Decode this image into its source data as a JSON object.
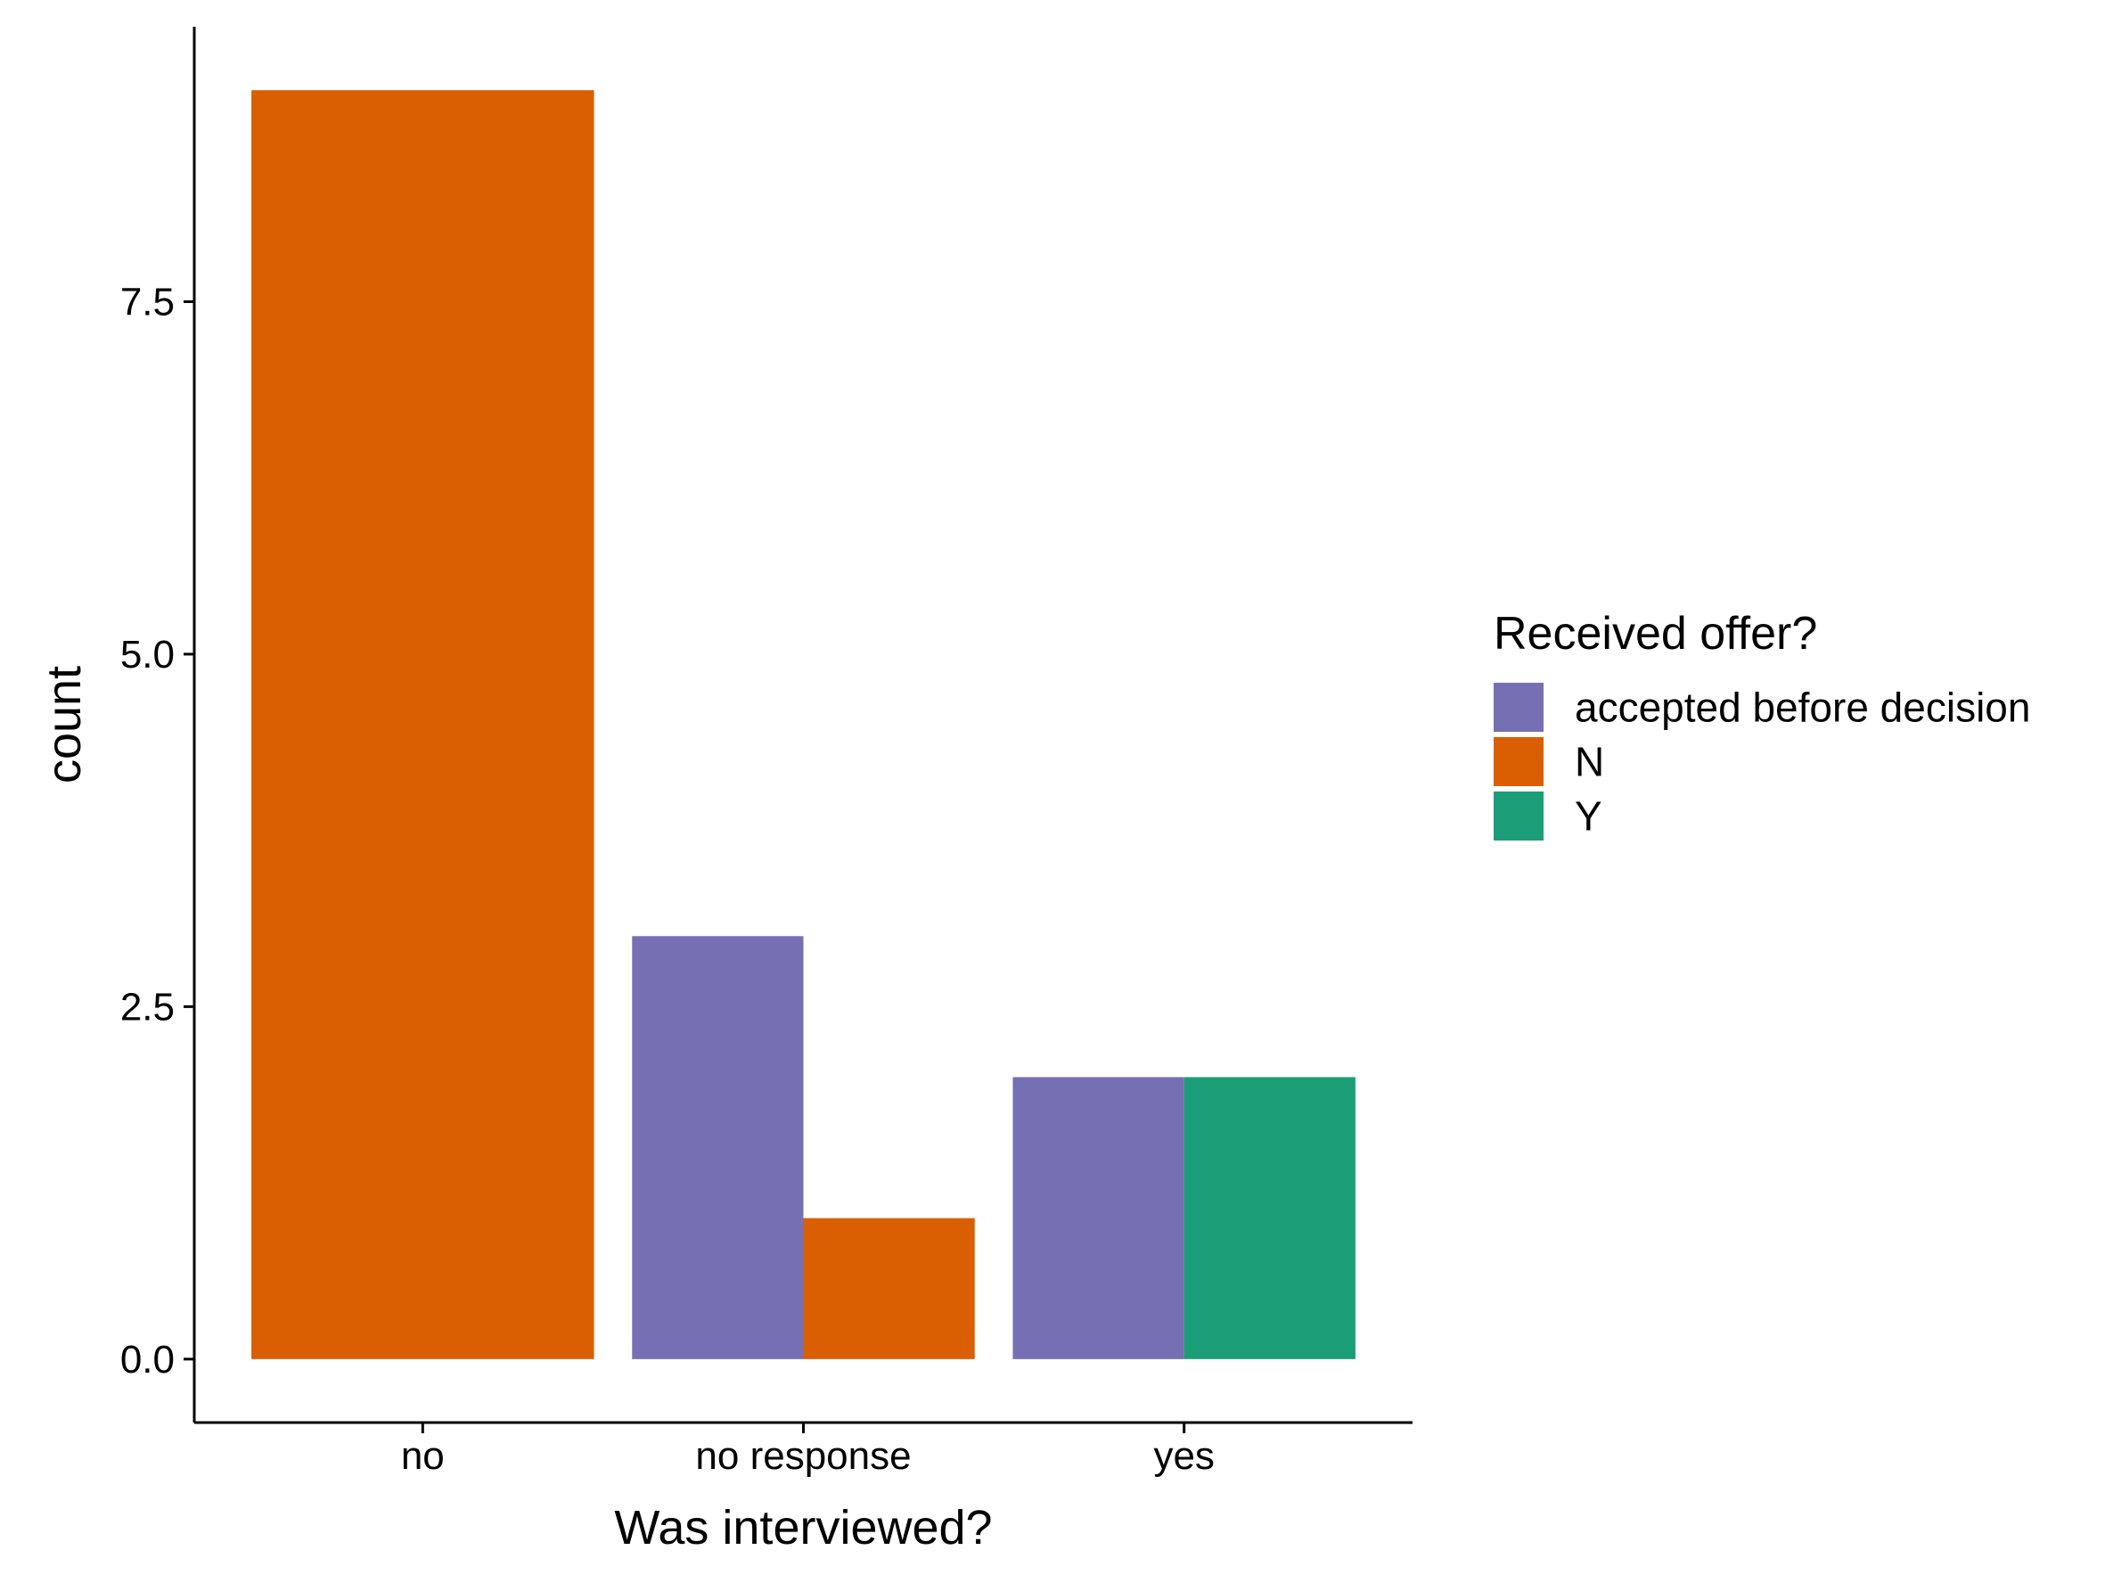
{
  "chart_data": {
    "type": "bar",
    "bar_mode": "dodge",
    "title": "",
    "xlabel": "Was interviewed?",
    "ylabel": "count",
    "ylim": [
      -0.45,
      9.45
    ],
    "y_ticks": [
      0.0,
      2.5,
      5.0,
      7.5
    ],
    "y_tick_labels": [
      "0.0",
      "2.5",
      "5.0",
      "7.5"
    ],
    "categories": [
      "no",
      "no response",
      "yes"
    ],
    "groups": [
      {
        "category": "no",
        "bars": [
          {
            "series": "N",
            "value": 9
          }
        ]
      },
      {
        "category": "no response",
        "bars": [
          {
            "series": "accepted before decision",
            "value": 3
          },
          {
            "series": "N",
            "value": 1
          }
        ]
      },
      {
        "category": "yes",
        "bars": [
          {
            "series": "accepted before decision",
            "value": 2
          },
          {
            "series": "Y",
            "value": 2
          }
        ]
      }
    ],
    "series": [
      {
        "name": "accepted before decision",
        "color": "#7570B3"
      },
      {
        "name": "N",
        "color": "#D95F02"
      },
      {
        "name": "Y",
        "color": "#1B9E77"
      }
    ],
    "legend": {
      "title": "Received offer?",
      "placement": "right",
      "entries": [
        "accepted before decision",
        "N",
        "Y"
      ]
    },
    "grid": false
  }
}
